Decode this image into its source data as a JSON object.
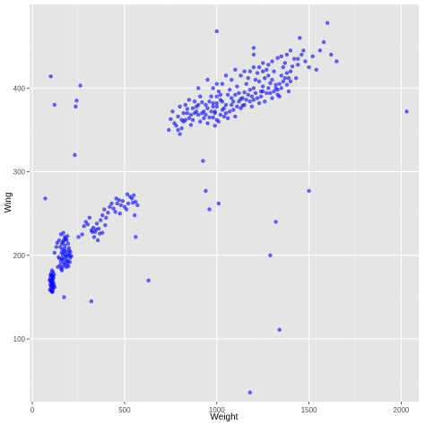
{
  "chart_data": {
    "type": "scatter",
    "title": "",
    "xlabel": "Weight",
    "ylabel": "Wing",
    "xlim": [
      -15,
      2095
    ],
    "ylim": [
      25,
      500
    ],
    "x_ticks": [
      0,
      500,
      1000,
      1500,
      2000
    ],
    "y_ticks": [
      100,
      200,
      300,
      400
    ],
    "x_tick_labels": [
      "0",
      "500",
      "1000",
      "1500",
      "2000"
    ],
    "y_tick_labels": [
      "100",
      "200",
      "300",
      "400"
    ],
    "grid": true,
    "legend": "none",
    "colors": {
      "panel_bg": "#e5e5e5",
      "grid_major": "#ffffff",
      "grid_minor": "#f0f0f0",
      "point": "#0000ff",
      "tick_text": "#4d4d4d",
      "axis_title": "#000000"
    },
    "series": [
      {
        "points": [
          [
            100,
            158
          ],
          [
            102,
            162
          ],
          [
            104,
            166
          ],
          [
            106,
            170
          ],
          [
            108,
            174
          ],
          [
            110,
            160
          ],
          [
            112,
            164
          ],
          [
            114,
            168
          ],
          [
            96,
            172
          ],
          [
            98,
            176
          ],
          [
            101,
            178
          ],
          [
            103,
            163
          ],
          [
            105,
            157
          ],
          [
            107,
            167
          ],
          [
            109,
            171
          ],
          [
            111,
            175
          ],
          [
            113,
            161
          ],
          [
            99,
            169
          ],
          [
            115,
            173
          ],
          [
            117,
            165
          ],
          [
            95,
            159
          ],
          [
            118,
            177
          ],
          [
            121,
            162
          ],
          [
            94,
            170
          ],
          [
            97,
            165
          ],
          [
            108,
            156
          ],
          [
            112,
            180
          ],
          [
            104,
            176
          ],
          [
            106,
            182
          ],
          [
            110,
            157
          ],
          [
            150,
            188
          ],
          [
            155,
            192
          ],
          [
            160,
            196
          ],
          [
            165,
            200
          ],
          [
            170,
            204
          ],
          [
            175,
            208
          ],
          [
            180,
            198
          ],
          [
            185,
            194
          ],
          [
            190,
            190
          ],
          [
            195,
            202
          ],
          [
            200,
            206
          ],
          [
            205,
            197
          ],
          [
            158,
            203
          ],
          [
            162,
            207
          ],
          [
            168,
            195
          ],
          [
            172,
            191
          ],
          [
            178,
            201
          ],
          [
            182,
            205
          ],
          [
            188,
            199
          ],
          [
            192,
            193
          ],
          [
            198,
            209
          ],
          [
            202,
            200
          ],
          [
            148,
            196
          ],
          [
            152,
            210
          ],
          [
            176,
            212
          ],
          [
            184,
            186
          ],
          [
            194,
            214
          ],
          [
            166,
            216
          ],
          [
            186,
            218
          ],
          [
            174,
            189
          ],
          [
            196,
            187
          ],
          [
            206,
            204
          ],
          [
            212,
            199
          ],
          [
            156,
            184
          ],
          [
            164,
            186
          ],
          [
            180,
            220
          ],
          [
            190,
            223
          ],
          [
            160,
            214
          ],
          [
            170,
            218
          ],
          [
            203,
            192
          ],
          [
            120,
            203
          ],
          [
            135,
            215
          ],
          [
            120,
            380
          ],
          [
            130,
            210
          ],
          [
            145,
            218
          ],
          [
            155,
            225
          ],
          [
            168,
            227
          ],
          [
            175,
            222
          ],
          [
            142,
            198
          ],
          [
            138,
            186
          ],
          [
            160,
            182
          ],
          [
            172,
            150
          ],
          [
            320,
            145
          ],
          [
            250,
            222
          ],
          [
            270,
            225
          ],
          [
            280,
            235
          ],
          [
            290,
            240
          ],
          [
            300,
            237
          ],
          [
            310,
            245
          ],
          [
            320,
            230
          ],
          [
            330,
            233
          ],
          [
            340,
            228
          ],
          [
            350,
            238
          ],
          [
            360,
            232
          ],
          [
            370,
            242
          ],
          [
            380,
            248
          ],
          [
            390,
            255
          ],
          [
            400,
            245
          ],
          [
            410,
            251
          ],
          [
            420,
            258
          ],
          [
            430,
            262
          ],
          [
            440,
            256
          ],
          [
            450,
            252
          ],
          [
            460,
            262
          ],
          [
            470,
            266
          ],
          [
            480,
            260
          ],
          [
            490,
            265
          ],
          [
            500,
            258
          ],
          [
            510,
            255
          ],
          [
            520,
            262
          ],
          [
            530,
            270
          ],
          [
            540,
            268
          ],
          [
            550,
            272
          ],
          [
            560,
            264
          ],
          [
            570,
            260
          ],
          [
            325,
            228
          ],
          [
            335,
            222
          ],
          [
            345,
            231
          ],
          [
            355,
            218
          ],
          [
            365,
            226
          ],
          [
            380,
            227
          ],
          [
            395,
            236
          ],
          [
            455,
            268
          ],
          [
            475,
            250
          ],
          [
            515,
            273
          ],
          [
            545,
            263
          ],
          [
            555,
            248
          ],
          [
            230,
            320
          ],
          [
            235,
            378
          ],
          [
            240,
            385
          ],
          [
            260,
            403
          ],
          [
            100,
            414
          ],
          [
            70,
            268
          ],
          [
            560,
            222
          ],
          [
            630,
            170
          ],
          [
            740,
            350
          ],
          [
            750,
            363
          ],
          [
            760,
            372
          ],
          [
            770,
            358
          ],
          [
            780,
            355
          ],
          [
            790,
            366
          ],
          [
            800,
            378
          ],
          [
            810,
            362
          ],
          [
            820,
            370
          ],
          [
            830,
            380
          ],
          [
            840,
            375
          ],
          [
            850,
            386
          ],
          [
            860,
            368
          ],
          [
            870,
            376
          ],
          [
            880,
            384
          ],
          [
            890,
            372
          ],
          [
            900,
            380
          ],
          [
            910,
            390
          ],
          [
            920,
            383
          ],
          [
            930,
            372
          ],
          [
            940,
            368
          ],
          [
            950,
            376
          ],
          [
            960,
            384
          ],
          [
            970,
            390
          ],
          [
            980,
            378
          ],
          [
            990,
            370
          ],
          [
            1000,
            382
          ],
          [
            1010,
            396
          ],
          [
            1020,
            386
          ],
          [
            1030,
            374
          ],
          [
            1040,
            366
          ],
          [
            1050,
            380
          ],
          [
            1060,
            392
          ],
          [
            1070,
            398
          ],
          [
            1080,
            388
          ],
          [
            1090,
            384
          ],
          [
            1100,
            392
          ],
          [
            1110,
            402
          ],
          [
            1120,
            394
          ],
          [
            1130,
            387
          ],
          [
            1140,
            379
          ],
          [
            1150,
            395
          ],
          [
            1160,
            405
          ],
          [
            1170,
            412
          ],
          [
            1180,
            398
          ],
          [
            1190,
            390
          ],
          [
            1200,
            400
          ],
          [
            1210,
            410
          ],
          [
            1220,
            418
          ],
          [
            1230,
            408
          ],
          [
            1240,
            396
          ],
          [
            1250,
            402
          ],
          [
            1260,
            412
          ],
          [
            1270,
            422
          ],
          [
            1280,
            415
          ],
          [
            1290,
            406
          ],
          [
            1300,
            410
          ],
          [
            1310,
            420
          ],
          [
            1320,
            400
          ],
          [
            1330,
            392
          ],
          [
            1340,
            405
          ],
          [
            1350,
            415
          ],
          [
            1360,
            425
          ],
          [
            1370,
            430
          ],
          [
            1380,
            418
          ],
          [
            1390,
            412
          ],
          [
            1400,
            420
          ],
          [
            1410,
            426
          ],
          [
            1420,
            435
          ],
          [
            1440,
            428
          ],
          [
            1460,
            440
          ],
          [
            1480,
            432
          ],
          [
            1500,
            425
          ],
          [
            1520,
            438
          ],
          [
            1540,
            422
          ],
          [
            1560,
            445
          ],
          [
            1580,
            455
          ],
          [
            1600,
            478
          ],
          [
            1620,
            440
          ],
          [
            1650,
            432
          ],
          [
            1470,
            445
          ],
          [
            1430,
            412
          ],
          [
            980,
            365
          ],
          [
            990,
            372
          ],
          [
            1000,
            378
          ],
          [
            1010,
            360
          ],
          [
            1020,
            368
          ],
          [
            1030,
            384
          ],
          [
            1000,
            390
          ],
          [
            970,
            372
          ],
          [
            960,
            365
          ],
          [
            950,
            358
          ],
          [
            1040,
            376
          ],
          [
            1050,
            370
          ],
          [
            1060,
            364
          ],
          [
            1070,
            372
          ],
          [
            1080,
            380
          ],
          [
            1090,
            374
          ],
          [
            1100,
            366
          ],
          [
            1110,
            378
          ],
          [
            1120,
            384
          ],
          [
            1130,
            376
          ],
          [
            1000,
            362
          ],
          [
            990,
            355
          ],
          [
            980,
            382
          ],
          [
            1020,
            392
          ],
          [
            940,
            380
          ],
          [
            930,
            364
          ],
          [
            920,
            370
          ],
          [
            910,
            360
          ],
          [
            900,
            368
          ],
          [
            890,
            378
          ],
          [
            880,
            370
          ],
          [
            870,
            362
          ],
          [
            860,
            356
          ],
          [
            850,
            364
          ],
          [
            840,
            370
          ],
          [
            830,
            362
          ],
          [
            820,
            360
          ],
          [
            810,
            352
          ],
          [
            800,
            345
          ],
          [
            790,
            350
          ],
          [
            1140,
            388
          ],
          [
            1150,
            380
          ],
          [
            1160,
            386
          ],
          [
            1170,
            392
          ],
          [
            1180,
            384
          ],
          [
            1190,
            378
          ],
          [
            1200,
            386
          ],
          [
            1210,
            394
          ],
          [
            1220,
            388
          ],
          [
            1230,
            382
          ],
          [
            1240,
            390
          ],
          [
            1250,
            396
          ],
          [
            1260,
            384
          ],
          [
            1270,
            394
          ],
          [
            1280,
            400
          ],
          [
            1290,
            394
          ],
          [
            1300,
            388
          ],
          [
            1310,
            396
          ],
          [
            1320,
            404
          ],
          [
            1330,
            398
          ],
          [
            1340,
            390
          ],
          [
            1350,
            400
          ],
          [
            1360,
            408
          ],
          [
            1370,
            412
          ],
          [
            1380,
            404
          ],
          [
            1390,
            396
          ],
          [
            1400,
            408
          ],
          [
            900,
            400
          ],
          [
            950,
            410
          ],
          [
            1000,
            405
          ],
          [
            1050,
            415
          ],
          [
            1100,
            422
          ],
          [
            1150,
            420
          ],
          [
            1200,
            425
          ],
          [
            1250,
            430
          ],
          [
            1300,
            432
          ],
          [
            1200,
            440
          ],
          [
            1250,
            420
          ],
          [
            1350,
            438
          ],
          [
            1400,
            445
          ],
          [
            1440,
            435
          ],
          [
            1450,
            460
          ],
          [
            1380,
            440
          ],
          [
            1330,
            436
          ],
          [
            1280,
            428
          ],
          [
            1230,
            425
          ],
          [
            1180,
            420
          ],
          [
            1130,
            415
          ],
          [
            1080,
            410
          ],
          [
            1030,
            405
          ],
          [
            980,
            400
          ],
          [
            1000,
            468
          ],
          [
            1200,
            448
          ],
          [
            1500,
            277
          ],
          [
            1010,
            262
          ],
          [
            960,
            255
          ],
          [
            940,
            277
          ],
          [
            925,
            313
          ],
          [
            1180,
            36
          ],
          [
            1340,
            111
          ],
          [
            1290,
            200
          ],
          [
            1320,
            240
          ],
          [
            2030,
            372
          ]
        ]
      }
    ]
  }
}
